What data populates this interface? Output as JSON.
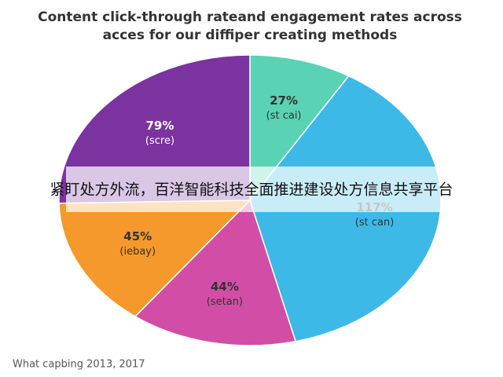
{
  "chart_data": {
    "type": "pie",
    "title": [
      "Content click-through rateand engagement rates across",
      "acces for our diffiper creating methods"
    ],
    "labels": [
      "(st cai)",
      "(st can)",
      "(setan)",
      "(iebay)",
      "(scre)"
    ],
    "values": [
      27,
      117,
      44,
      45,
      79
    ],
    "value_labels": [
      "27%",
      "117%",
      "44%",
      "45%",
      "79%"
    ],
    "colors": [
      "#5ad2b4",
      "#3db9e8",
      "#d24ea6",
      "#f5992c",
      "#7b33a0"
    ],
    "footnote": "What capbing 2013, 2017"
  },
  "banner": {
    "text": "紧盯处方外流，百洋智能科技全面推进建设处方信息共享平台"
  }
}
